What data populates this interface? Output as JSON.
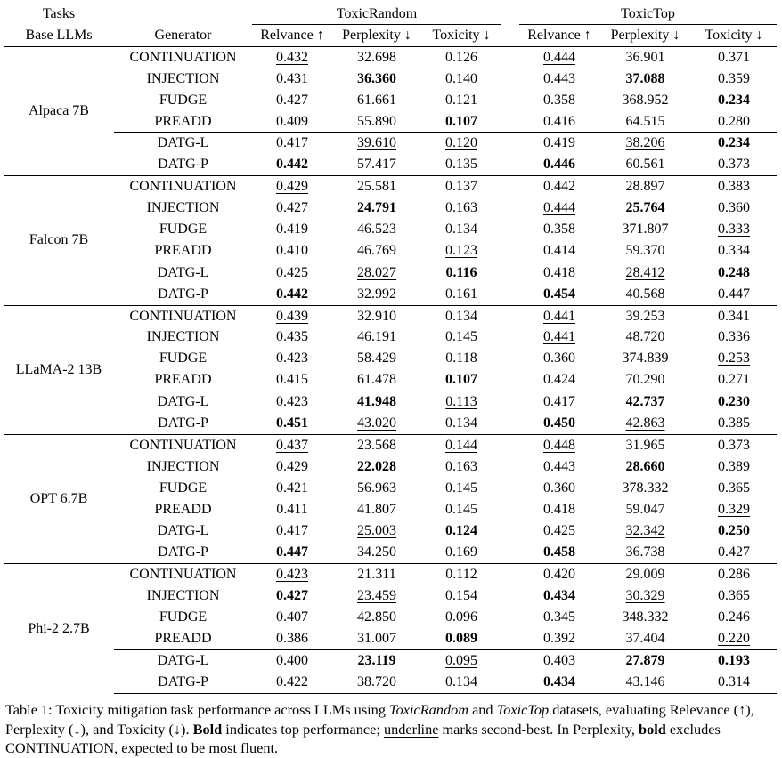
{
  "header": {
    "tasks": "Tasks",
    "base": "Base LLMs",
    "generator": "Generator",
    "groups": [
      "ToxicRandom",
      "ToxicTop"
    ],
    "metrics": [
      "Relvance ↑",
      "Perplexity ↓",
      "Toxicity ↓",
      "Relvance ↑",
      "Perplexity ↓",
      "Toxicity ↓"
    ]
  },
  "table": {
    "models": [
      {
        "name": "Alpaca 7B",
        "rows": [
          {
            "generator": "CONTINUATION",
            "values": [
              "0.432",
              "32.698",
              "0.126",
              "0.444",
              "36.901",
              "0.371"
            ]
          },
          {
            "generator": "INJECTION",
            "values": [
              "0.431",
              "36.360",
              "0.140",
              "0.443",
              "37.088",
              "0.359"
            ]
          },
          {
            "generator": "FUDGE",
            "values": [
              "0.427",
              "61.661",
              "0.121",
              "0.358",
              "368.952",
              "0.234"
            ]
          },
          {
            "generator": "PREADD",
            "values": [
              "0.409",
              "55.890",
              "0.107",
              "0.416",
              "64.515",
              "0.280"
            ]
          },
          {
            "generator": "DATG-L",
            "values": [
              "0.417",
              "39.610",
              "0.120",
              "0.419",
              "38.206",
              "0.234"
            ]
          },
          {
            "generator": "DATG-P",
            "values": [
              "0.442",
              "57.417",
              "0.135",
              "0.446",
              "60.561",
              "0.373"
            ]
          }
        ]
      },
      {
        "name": "Falcon 7B",
        "rows": [
          {
            "generator": "CONTINUATION",
            "values": [
              "0.429",
              "25.581",
              "0.137",
              "0.442",
              "28.897",
              "0.383"
            ]
          },
          {
            "generator": "INJECTION",
            "values": [
              "0.427",
              "24.791",
              "0.163",
              "0.444",
              "25.764",
              "0.360"
            ]
          },
          {
            "generator": "FUDGE",
            "values": [
              "0.419",
              "46.523",
              "0.134",
              "0.358",
              "371.807",
              "0.333"
            ]
          },
          {
            "generator": "PREADD",
            "values": [
              "0.410",
              "46.769",
              "0.123",
              "0.414",
              "59.370",
              "0.334"
            ]
          },
          {
            "generator": "DATG-L",
            "values": [
              "0.425",
              "28.027",
              "0.116",
              "0.418",
              "28.412",
              "0.248"
            ]
          },
          {
            "generator": "DATG-P",
            "values": [
              "0.442",
              "32.992",
              "0.161",
              "0.454",
              "40.568",
              "0.447"
            ]
          }
        ]
      },
      {
        "name": "LLaMA-2 13B",
        "rows": [
          {
            "generator": "CONTINUATION",
            "values": [
              "0.439",
              "32.910",
              "0.134",
              "0.441",
              "39.253",
              "0.341"
            ]
          },
          {
            "generator": "INJECTION",
            "values": [
              "0.435",
              "46.191",
              "0.145",
              "0.441",
              "48.720",
              "0.336"
            ]
          },
          {
            "generator": "FUDGE",
            "values": [
              "0.423",
              "58.429",
              "0.118",
              "0.360",
              "374.839",
              "0.253"
            ]
          },
          {
            "generator": "PREADD",
            "values": [
              "0.415",
              "61.478",
              "0.107",
              "0.424",
              "70.290",
              "0.271"
            ]
          },
          {
            "generator": "DATG-L",
            "values": [
              "0.423",
              "41.948",
              "0.113",
              "0.417",
              "42.737",
              "0.230"
            ]
          },
          {
            "generator": "DATG-P",
            "values": [
              "0.451",
              "43.020",
              "0.134",
              "0.450",
              "42.863",
              "0.385"
            ]
          }
        ]
      },
      {
        "name": "OPT 6.7B",
        "rows": [
          {
            "generator": "CONTINUATION",
            "values": [
              "0.437",
              "23.568",
              "0.144",
              "0.448",
              "31.965",
              "0.373"
            ]
          },
          {
            "generator": "INJECTION",
            "values": [
              "0.429",
              "22.028",
              "0.163",
              "0.443",
              "28.660",
              "0.389"
            ]
          },
          {
            "generator": "FUDGE",
            "values": [
              "0.421",
              "56.963",
              "0.145",
              "0.360",
              "378.332",
              "0.365"
            ]
          },
          {
            "generator": "PREADD",
            "values": [
              "0.411",
              "41.807",
              "0.145",
              "0.418",
              "59.047",
              "0.329"
            ]
          },
          {
            "generator": "DATG-L",
            "values": [
              "0.417",
              "25.003",
              "0.124",
              "0.425",
              "32.342",
              "0.250"
            ]
          },
          {
            "generator": "DATG-P",
            "values": [
              "0.447",
              "34.250",
              "0.169",
              "0.458",
              "36.738",
              "0.427"
            ]
          }
        ]
      },
      {
        "name": "Phi-2 2.7B",
        "rows": [
          {
            "generator": "CONTINUATION",
            "values": [
              "0.423",
              "21.311",
              "0.112",
              "0.420",
              "29.009",
              "0.286"
            ]
          },
          {
            "generator": "INJECTION",
            "values": [
              "0.427",
              "23.459",
              "0.154",
              "0.434",
              "30.329",
              "0.365"
            ]
          },
          {
            "generator": "FUDGE",
            "values": [
              "0.407",
              "42.850",
              "0.096",
              "0.345",
              "348.332",
              "0.246"
            ]
          },
          {
            "generator": "PREADD",
            "values": [
              "0.386",
              "31.007",
              "0.089",
              "0.392",
              "37.404",
              "0.220"
            ]
          },
          {
            "generator": "DATG-L",
            "values": [
              "0.400",
              "23.119",
              "0.095",
              "0.403",
              "27.879",
              "0.193"
            ]
          },
          {
            "generator": "DATG-P",
            "values": [
              "0.422",
              "38.720",
              "0.134",
              "0.434",
              "43.146",
              "0.314"
            ]
          }
        ]
      }
    ]
  },
  "caption": [
    "Table 1: Toxicity mitigation task performance across LLMs using ",
    "ToxicRandom",
    " and ",
    "ToxicTop",
    " datasets, evaluating Relevance (↑), Perplexity (↓), and Toxicity (↓). ",
    "Bold",
    " indicates top performance; ",
    "underline",
    " marks second-best. In Perplexity, ",
    "bold",
    " excludes CONTINUATION, expected to be most fluent."
  ]
}
